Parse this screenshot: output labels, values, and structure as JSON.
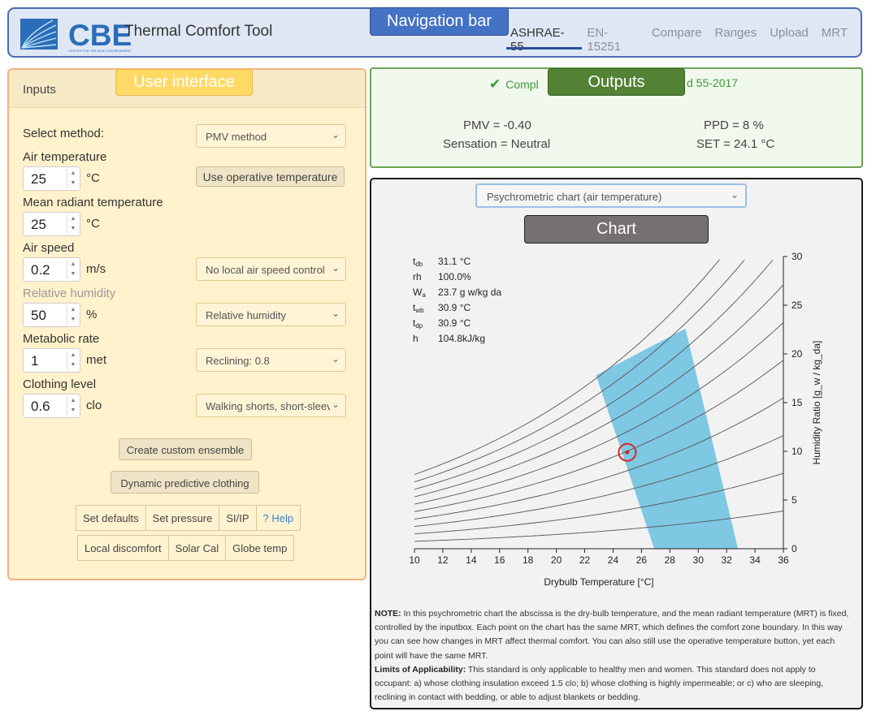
{
  "navbar": {
    "logo_text": "CBE",
    "logo_subtext": "CENTER FOR THE BUILT ENVIRONMENT",
    "app_title": "Thermal Comfort Tool",
    "items": [
      "ASHRAE-55",
      "EN-15251",
      "Compare",
      "Ranges",
      "Upload",
      "MRT"
    ],
    "active": "ASHRAE-55"
  },
  "annotations": {
    "nav": "Navigation bar",
    "ui": "User interface",
    "outputs": "Outputs",
    "chart": "Chart"
  },
  "inputs": {
    "title": "Inputs",
    "select_method_label": "Select method:",
    "method_value": "PMV method",
    "air_temp_label": "Air temperature",
    "air_temp_value": "25",
    "air_temp_unit": "°C",
    "operative_button": "Use operative temperature",
    "mrt_label": "Mean radiant temperature",
    "mrt_value": "25",
    "mrt_unit": "°C",
    "air_speed_label": "Air speed",
    "air_speed_value": "0.2",
    "air_speed_unit": "m/s",
    "air_speed_select": "No local air speed control",
    "rh_label": "Relative humidity",
    "rh_value": "50",
    "rh_unit": "%",
    "rh_select": "Relative humidity",
    "met_label": "Metabolic rate",
    "met_value": "1",
    "met_unit": "met",
    "met_select": "Reclining: 0.8",
    "clo_label": "Clothing level",
    "clo_value": "0.6",
    "clo_unit": "clo",
    "clo_select": "Walking shorts, short-sleeve shirt",
    "custom_ensemble_button": "Create custom ensemble",
    "dynamic_clothing_button": "Dynamic predictive clothing",
    "group1": [
      "Set defaults",
      "Set pressure",
      "SI/IP",
      "? Help"
    ],
    "group2": [
      "Local discomfort",
      "Solar Cal",
      "Globe temp"
    ]
  },
  "outputs": {
    "compliance_left": "Compl",
    "compliance_right": "d 55-2017",
    "pmv": "PMV = -0.40",
    "sensation": "Sensation = Neutral",
    "ppd": "PPD = 8 %",
    "set": "SET = 24.1 °C"
  },
  "chart_panel": {
    "select_value": "Psychrometric chart (air temperature)",
    "readout": [
      {
        "key": "t",
        "sub": "db",
        "value": "31.1  °C"
      },
      {
        "key": "rh",
        "sub": "",
        "value": "100.0%"
      },
      {
        "key": "W",
        "sub": "a",
        "value": "23.7  g w/kg da"
      },
      {
        "key": "t",
        "sub": "wb",
        "value": "30.9  °C"
      },
      {
        "key": "t",
        "sub": "dp",
        "value": "30.9  °C"
      },
      {
        "key": "h",
        "sub": "",
        "value": "104.8kJ/kg"
      }
    ],
    "note_label": "NOTE:",
    "note_text": " In this psychrometric chart the abscissa is the dry-bulb temperature, and the mean radiant temperature (MRT) is fixed, controlled by the inputbox. Each point on the chart has the same MRT, which defines the comfort zone boundary. In this way you can see how changes in MRT affect thermal comfort. You can also still use the operative temperature button, yet each point will have the same MRT.",
    "limits_label": "Limits of Applicability:",
    "limits_text": " This standard is only applicable to healthy men and women. This standard does not apply to occupant: a) whose clothing insulation exceed 1.5 clo; b) whose clothing is highly impermeable; or c) who are sleeping, reclining in contact with bedding, or able to adjust blankets or bedding."
  },
  "chart_data": {
    "type": "line",
    "xlabel": "Drybulb Temperature [°C]",
    "ylabel": "Humidity Ratio [g_w / kg_da]",
    "xlim": [
      10,
      36
    ],
    "ylim": [
      0,
      30
    ],
    "x_ticks": [
      10,
      12,
      14,
      16,
      18,
      20,
      22,
      24,
      26,
      28,
      30,
      32,
      34,
      36
    ],
    "y_ticks": [
      0,
      5,
      10,
      15,
      20,
      25,
      30
    ],
    "rh_curves": [
      0.1,
      0.2,
      0.3,
      0.4,
      0.5,
      0.6,
      0.7,
      0.8,
      0.9,
      1.0
    ],
    "comfort_zone": {
      "color": "#7ec8e3",
      "points": [
        [
          26.9,
          0
        ],
        [
          32.8,
          0
        ],
        [
          29.1,
          22.6
        ],
        [
          22.8,
          17.8
        ]
      ]
    },
    "current_point": {
      "x": 25.0,
      "y": 9.9,
      "color": "#d62728"
    }
  }
}
